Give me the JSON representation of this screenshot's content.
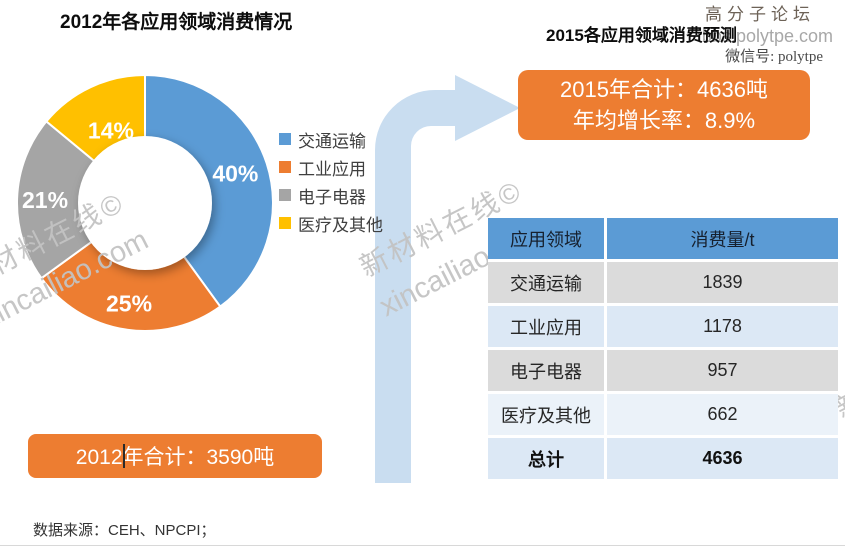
{
  "header": {
    "left_title": "2012年各应用领域消费情况",
    "right_title": "2015各应用领域消费预测"
  },
  "watermark_topright": {
    "line1": "高分子论坛",
    "line2": "bbs.polytpe.com",
    "line3": "微信号: polytpe"
  },
  "watermark_diagonal": {
    "line1": "新材料在线©",
    "line2": "xincailiao.com"
  },
  "summary_2015": {
    "line1": "2015年合计：4636吨",
    "line2": "年均增长率：8.9%"
  },
  "summary_2012": {
    "label": "2012年合计：3590吨"
  },
  "footer": {
    "source": "数据来源：CEH、NPCPI；"
  },
  "chart_data": [
    {
      "type": "pie",
      "subtype": "donut",
      "title": "2012年各应用领域消费情况",
      "categories": [
        "交通运输",
        "工业应用",
        "电子电器",
        "医疗及其他"
      ],
      "values": [
        40,
        25,
        21,
        14
      ],
      "unit": "%",
      "labels": [
        "40%",
        "25%",
        "21%",
        "14%"
      ],
      "colors": [
        "#5B9BD5",
        "#ED7D31",
        "#A5A5A5",
        "#FFC000"
      ],
      "legend_position": "right",
      "start_angle_deg": 0,
      "direction": "clockwise",
      "total_label": "2012年合计：3590吨"
    },
    {
      "type": "table",
      "title": "2015各应用领域消费预测",
      "columns": [
        "应用领域",
        "消费量/t"
      ],
      "rows": [
        [
          "交通运输",
          "1839"
        ],
        [
          "工业应用",
          "1178"
        ],
        [
          "电子电器",
          "957"
        ],
        [
          "医疗及其他",
          "662"
        ],
        [
          "总计",
          "4636"
        ]
      ],
      "row_styles": [
        "gray",
        "blue",
        "gray",
        "light",
        "blue"
      ],
      "total_row_index": 4
    }
  ],
  "colors": {
    "accent_orange": "#ED7D31",
    "pie_blue": "#5B9BD5",
    "pie_orange": "#ED7D31",
    "pie_gray": "#A5A5A5",
    "pie_yellow": "#FFC000",
    "arrow_blue": "#C9DDF0",
    "table_header_bg": "#5B9BD5",
    "row_gray_bg": "#DBDBDB",
    "row_blue_bg": "#DCE8F5",
    "row_light_bg": "#EBF2F9",
    "watermark_gray": "#C3C3C3"
  }
}
